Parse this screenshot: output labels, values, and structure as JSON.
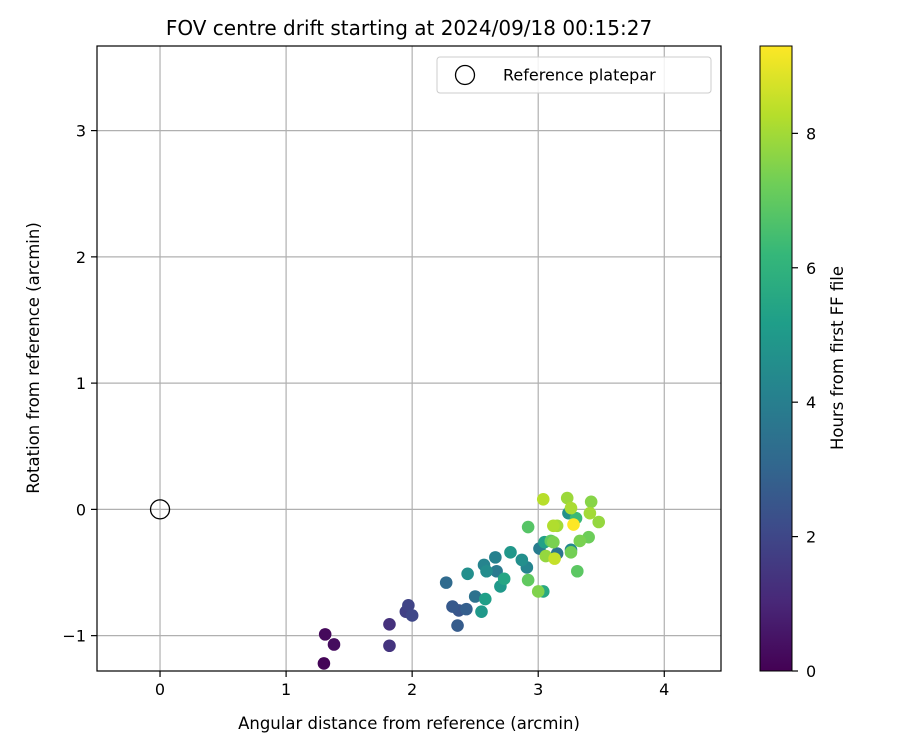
{
  "chart_data": {
    "type": "scatter",
    "title": "FOV centre drift starting at 2024/09/18 00:15:27",
    "xlabel": "Angular distance from reference (arcmin)",
    "ylabel": "Rotation from reference (arcmin)",
    "xlim": [
      -0.5,
      4.45
    ],
    "ylim": [
      -1.28,
      3.67
    ],
    "xticks": [
      0,
      1,
      2,
      3,
      4
    ],
    "yticks": [
      -1,
      0,
      1,
      2,
      3
    ],
    "xtick_labels": [
      "0",
      "1",
      "2",
      "3",
      "4"
    ],
    "ytick_labels": [
      "−1",
      "0",
      "1",
      "2",
      "3"
    ],
    "grid": true,
    "legend": {
      "placement": "top-right",
      "entries": [
        {
          "label": "Reference platepar",
          "marker": "open-circle"
        }
      ]
    },
    "reference_point": {
      "x": 0,
      "y": 0
    },
    "colorbar": {
      "label": "Hours from first FF file",
      "colormap": "viridis",
      "range": [
        0,
        9.3
      ],
      "ticks": [
        0,
        2,
        4,
        6,
        8
      ],
      "tick_labels": [
        "0",
        "2",
        "4",
        "6",
        "8"
      ]
    },
    "colormap_stops": [
      "#440154",
      "#482878",
      "#3e4989",
      "#31688e",
      "#26828e",
      "#1f9e89",
      "#35b779",
      "#6ece58",
      "#b5de2b",
      "#fde725"
    ],
    "points": [
      {
        "x": 1.3,
        "y": -1.22,
        "h": 0.1
      },
      {
        "x": 1.31,
        "y": -0.99,
        "h": 0.2
      },
      {
        "x": 1.38,
        "y": -1.07,
        "h": 0.3
      },
      {
        "x": 1.82,
        "y": -0.91,
        "h": 1.3
      },
      {
        "x": 1.82,
        "y": -1.08,
        "h": 1.4
      },
      {
        "x": 1.95,
        "y": -0.81,
        "h": 1.8
      },
      {
        "x": 1.97,
        "y": -0.76,
        "h": 1.9
      },
      {
        "x": 2.0,
        "y": -0.84,
        "h": 2.0
      },
      {
        "x": 2.27,
        "y": -0.58,
        "h": 3.2
      },
      {
        "x": 2.32,
        "y": -0.77,
        "h": 2.6
      },
      {
        "x": 2.36,
        "y": -0.92,
        "h": 2.7
      },
      {
        "x": 2.37,
        "y": -0.8,
        "h": 2.5
      },
      {
        "x": 2.43,
        "y": -0.79,
        "h": 2.8
      },
      {
        "x": 2.44,
        "y": -0.51,
        "h": 4.6
      },
      {
        "x": 2.5,
        "y": -0.69,
        "h": 3.5
      },
      {
        "x": 2.55,
        "y": -0.81,
        "h": 5.0
      },
      {
        "x": 2.57,
        "y": -0.44,
        "h": 4.2
      },
      {
        "x": 2.58,
        "y": -0.71,
        "h": 5.2
      },
      {
        "x": 2.59,
        "y": -0.49,
        "h": 4.5
      },
      {
        "x": 2.66,
        "y": -0.38,
        "h": 4.1
      },
      {
        "x": 2.67,
        "y": -0.49,
        "h": 3.8
      },
      {
        "x": 2.7,
        "y": -0.61,
        "h": 5.0
      },
      {
        "x": 2.73,
        "y": -0.55,
        "h": 5.5
      },
      {
        "x": 2.78,
        "y": -0.34,
        "h": 4.9
      },
      {
        "x": 2.87,
        "y": -0.4,
        "h": 4.6
      },
      {
        "x": 2.91,
        "y": -0.46,
        "h": 4.2
      },
      {
        "x": 2.92,
        "y": -0.56,
        "h": 7.0
      },
      {
        "x": 2.92,
        "y": -0.14,
        "h": 6.8
      },
      {
        "x": 3.0,
        "y": -0.65,
        "h": 7.5
      },
      {
        "x": 3.01,
        "y": -0.31,
        "h": 3.9
      },
      {
        "x": 3.04,
        "y": -0.65,
        "h": 5.6
      },
      {
        "x": 3.04,
        "y": 0.08,
        "h": 8.3
      },
      {
        "x": 3.05,
        "y": -0.26,
        "h": 5.3
      },
      {
        "x": 3.06,
        "y": -0.37,
        "h": 7.8
      },
      {
        "x": 3.1,
        "y": -0.25,
        "h": 7.0
      },
      {
        "x": 3.12,
        "y": -0.13,
        "h": 8.2
      },
      {
        "x": 3.12,
        "y": -0.26,
        "h": 7.4
      },
      {
        "x": 3.13,
        "y": -0.39,
        "h": 8.5
      },
      {
        "x": 3.15,
        "y": -0.35,
        "h": 3.6
      },
      {
        "x": 3.15,
        "y": -0.13,
        "h": 8.0
      },
      {
        "x": 3.23,
        "y": 0.09,
        "h": 7.9
      },
      {
        "x": 3.24,
        "y": -0.03,
        "h": 4.7
      },
      {
        "x": 3.26,
        "y": 0.01,
        "h": 8.1
      },
      {
        "x": 3.26,
        "y": -0.32,
        "h": 4.4
      },
      {
        "x": 3.26,
        "y": -0.34,
        "h": 7.3
      },
      {
        "x": 3.28,
        "y": -0.12,
        "h": 9.3
      },
      {
        "x": 3.3,
        "y": -0.07,
        "h": 6.3
      },
      {
        "x": 3.31,
        "y": -0.49,
        "h": 6.9
      },
      {
        "x": 3.33,
        "y": -0.25,
        "h": 7.4
      },
      {
        "x": 3.4,
        "y": -0.22,
        "h": 7.2
      },
      {
        "x": 3.41,
        "y": -0.03,
        "h": 8.0
      },
      {
        "x": 3.42,
        "y": 0.06,
        "h": 7.6
      },
      {
        "x": 3.48,
        "y": -0.1,
        "h": 7.8
      }
    ]
  }
}
